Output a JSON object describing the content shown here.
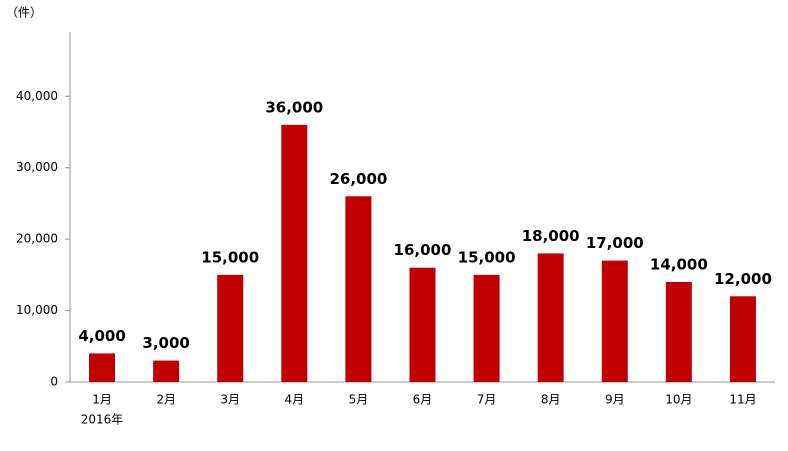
{
  "chart_data": {
    "type": "bar",
    "y_unit_label": "（件）",
    "categories": [
      "1月",
      "2月",
      "3月",
      "4月",
      "5月",
      "6月",
      "7月",
      "8月",
      "9月",
      "10月",
      "11月"
    ],
    "x_group_label": "2016年",
    "values": [
      4000,
      3000,
      15000,
      36000,
      26000,
      16000,
      15000,
      18000,
      17000,
      14000,
      12000
    ],
    "value_labels": [
      "4,000",
      "3,000",
      "15,000",
      "36,000",
      "26,000",
      "16,000",
      "15,000",
      "18,000",
      "17,000",
      "14,000",
      "12,000"
    ],
    "color": "#c00000",
    "ylim": [
      0,
      49000
    ],
    "yticks": [
      0,
      {
        "value": 10000,
        "label": "10,000"
      },
      {
        "value": 20000,
        "label": "20,000"
      },
      {
        "value": 30000,
        "label": "30,000"
      },
      {
        "value": 40000,
        "label": "40,000"
      }
    ],
    "grid": false
  }
}
